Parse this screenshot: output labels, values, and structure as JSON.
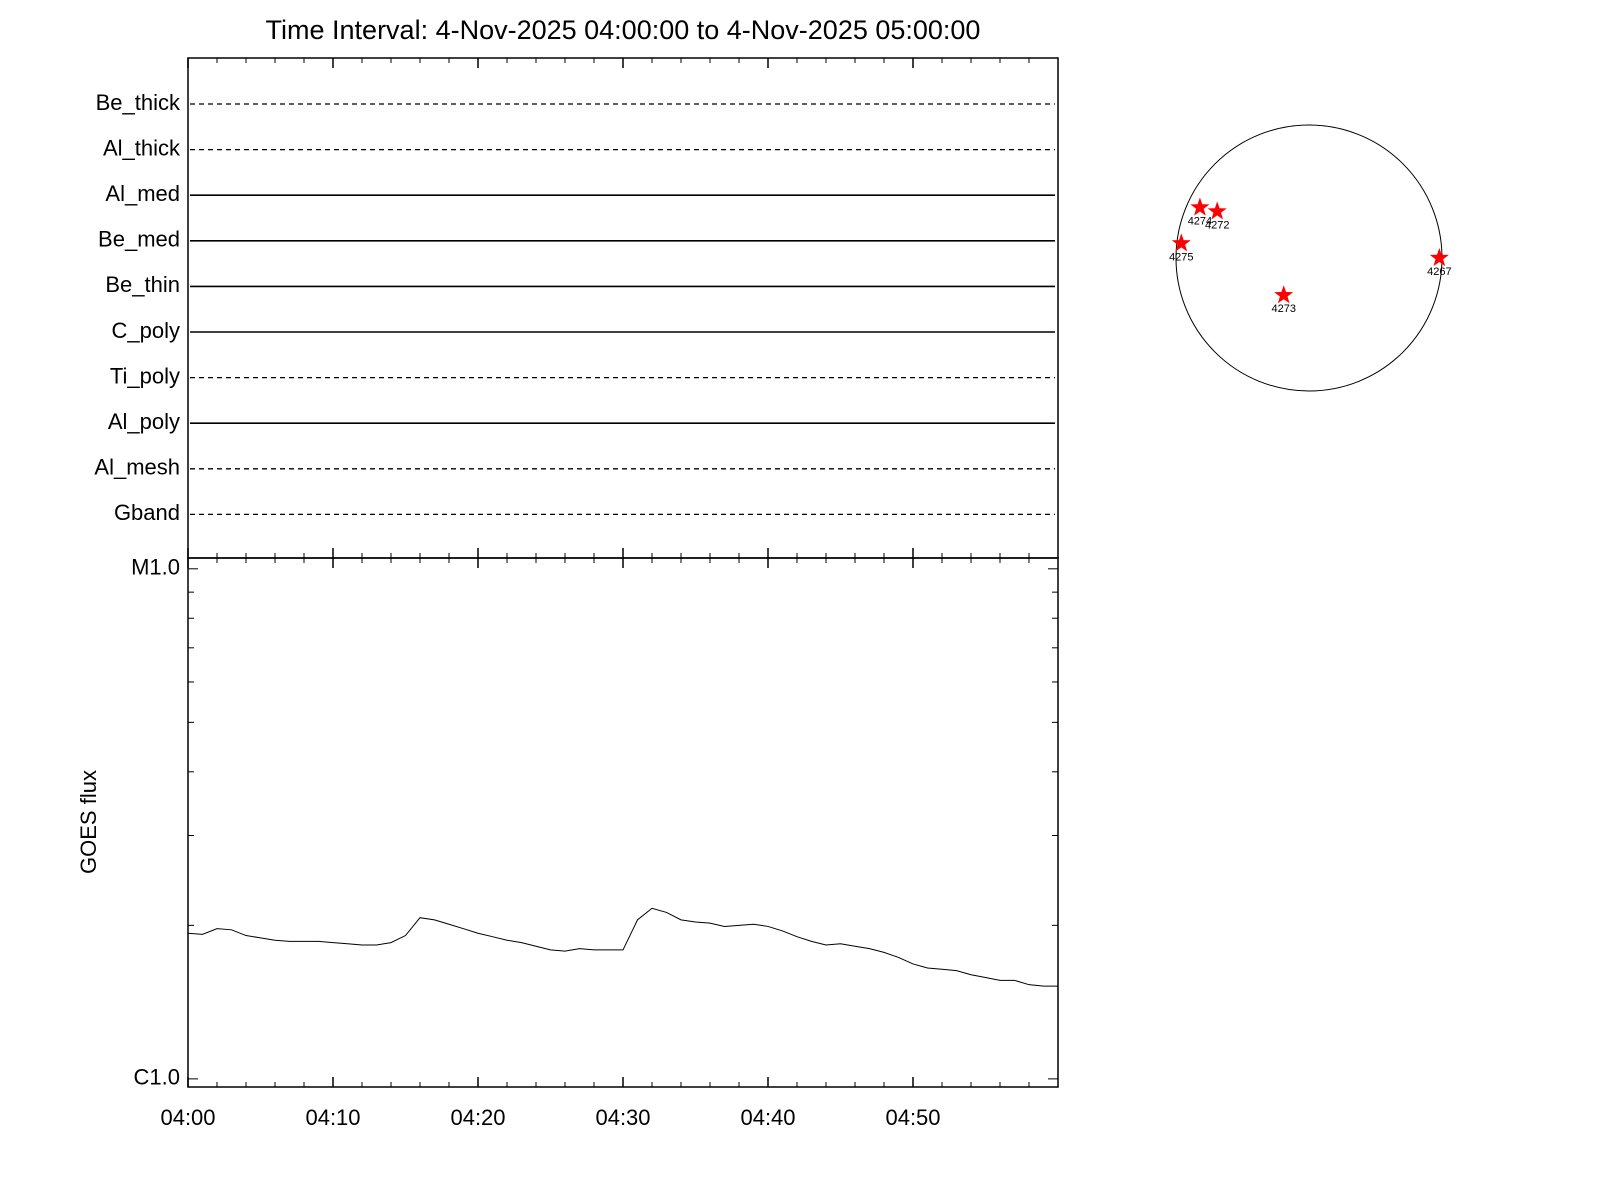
{
  "title": "Time Interval:  4-Nov-2025 04:00:00 to  4-Nov-2025 05:00:00",
  "chart_data": [
    {
      "type": "status",
      "categories": [
        "Be_thick",
        "Al_thick",
        "Al_med",
        "Be_med",
        "Be_thin",
        "C_poly",
        "Ti_poly",
        "Al_poly",
        "Al_mesh",
        "Gband"
      ],
      "styles": [
        "dashed",
        "dashed",
        "solid",
        "solid",
        "solid",
        "solid",
        "dashed",
        "solid",
        "dashed",
        "dashed"
      ]
    },
    {
      "type": "line",
      "ylabel": "GOES flux",
      "ylog": true,
      "x": [
        "04:00",
        "04:01",
        "04:02",
        "04:03",
        "04:04",
        "04:05",
        "04:06",
        "04:07",
        "04:08",
        "04:09",
        "04:10",
        "04:11",
        "04:12",
        "04:13",
        "04:14",
        "04:15",
        "04:16",
        "04:17",
        "04:18",
        "04:19",
        "04:20",
        "04:21",
        "04:22",
        "04:23",
        "04:24",
        "04:25",
        "04:26",
        "04:27",
        "04:28",
        "04:29",
        "04:30",
        "04:31",
        "04:32",
        "04:33",
        "04:34",
        "04:35",
        "04:36",
        "04:37",
        "04:38",
        "04:39",
        "04:40",
        "04:41",
        "04:42",
        "04:43",
        "04:44",
        "04:45",
        "04:46",
        "04:47",
        "04:48",
        "04:49",
        "04:50",
        "04:51",
        "04:52",
        "04:53",
        "04:54",
        "04:55",
        "04:56",
        "04:57",
        "04:58",
        "04:59",
        "05:00"
      ],
      "series": [
        {
          "color": "#000000",
          "values": [
            1.93e-06,
            1.92e-06,
            1.97e-06,
            1.96e-06,
            1.91e-06,
            1.89e-06,
            1.87e-06,
            1.86e-06,
            1.86e-06,
            1.86e-06,
            1.85e-06,
            1.84e-06,
            1.83e-06,
            1.83e-06,
            1.85e-06,
            1.91e-06,
            2.07e-06,
            2.05e-06,
            2.01e-06,
            1.97e-06,
            1.93e-06,
            1.9e-06,
            1.87e-06,
            1.85e-06,
            1.82e-06,
            1.79e-06,
            1.78e-06,
            1.8e-06,
            1.79e-06,
            1.79e-06,
            1.79e-06,
            2.05e-06,
            2.16e-06,
            2.12e-06,
            2.05e-06,
            2.03e-06,
            2.02e-06,
            1.99e-06,
            2e-06,
            2.01e-06,
            1.99e-06,
            1.95e-06,
            1.9e-06,
            1.86e-06,
            1.83e-06,
            1.84e-06,
            1.82e-06,
            1.8e-06,
            1.77e-06,
            1.73e-06,
            1.68e-06,
            1.65e-06,
            1.64e-06,
            1.63e-06,
            1.6e-06,
            1.58e-06,
            1.56e-06,
            1.56e-06,
            1.53e-06,
            1.52e-06,
            1.52e-06
          ]
        }
      ],
      "xlim": [
        "04:00",
        "05:00"
      ],
      "xticks": [
        "04:00",
        "04:10",
        "04:20",
        "04:30",
        "04:40",
        "04:50"
      ],
      "xminorticks": [
        "04:02",
        "04:04",
        "04:06",
        "04:08",
        "04:12",
        "04:14",
        "04:16",
        "04:18",
        "04:22",
        "04:24",
        "04:26",
        "04:28",
        "04:32",
        "04:34",
        "04:36",
        "04:38",
        "04:42",
        "04:44",
        "04:46",
        "04:48",
        "04:52",
        "04:54",
        "04:56",
        "04:58"
      ],
      "ylim": [
        9.64e-07,
        1.05e-05
      ],
      "yticks": [
        {
          "value": 1e-05,
          "label": "M1.0"
        },
        {
          "value": 1e-06,
          "label": "C1.0"
        }
      ],
      "yminorticks": [
        2e-06,
        3e-06,
        4e-06,
        5e-06,
        6e-06,
        7e-06,
        8e-06,
        9e-06
      ]
    },
    {
      "type": "scatter",
      "color": "#ff0000",
      "point_labels": [
        "4274",
        "4272",
        "4275",
        "4267",
        "4273"
      ],
      "x": [
        -0.82,
        -0.69,
        -0.96,
        0.98,
        -0.19
      ],
      "y": [
        0.38,
        0.35,
        0.11,
        0.0,
        -0.28
      ],
      "xlim": [
        -1,
        1
      ],
      "ylim": [
        -1,
        1
      ]
    }
  ]
}
